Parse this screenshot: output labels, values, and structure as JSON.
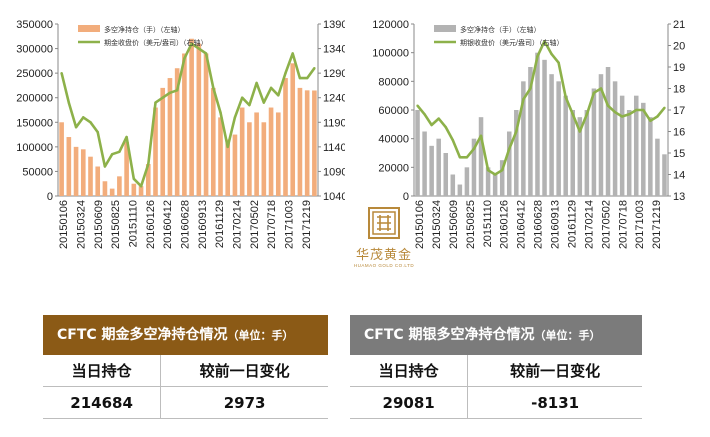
{
  "chart_data": [
    {
      "type": "bar+line",
      "legend": [
        "多空净持仓（手）（左轴）",
        "期金收盘价（美元/盎司）（右轴）"
      ],
      "legend_position": "top-left",
      "grid": false,
      "x_ticks": [
        "20150106",
        "20150324",
        "20150609",
        "20150825",
        "20151110",
        "20160126",
        "20160412",
        "20160628",
        "20160913",
        "20161129",
        "20170214",
        "20170502",
        "20170718",
        "20171003",
        "20171219"
      ],
      "y_left": {
        "min": 0,
        "max": 350000,
        "ticks": [
          "0",
          "50000",
          "100000",
          "150000",
          "200000",
          "250000",
          "300000",
          "350000"
        ]
      },
      "y_right": {
        "min": 1040,
        "max": 1390,
        "ticks": [
          "1040",
          "1090",
          "1140",
          "1190",
          "1240",
          "1290",
          "1340",
          "1390"
        ]
      },
      "colors": {
        "bars": "#f2ad7c",
        "line": "#8db14a"
      },
      "series": [
        {
          "name": "多空净持仓（手）（左轴）",
          "axis": "left",
          "kind": "bar",
          "x": [
            "2015-01",
            "2015-02",
            "2015-03",
            "2015-04",
            "2015-05",
            "2015-06",
            "2015-07",
            "2015-08",
            "2015-09",
            "2015-10",
            "2015-11",
            "2015-12",
            "2016-01",
            "2016-02",
            "2016-03",
            "2016-04",
            "2016-05",
            "2016-06",
            "2016-07",
            "2016-08",
            "2016-09",
            "2016-10",
            "2016-11",
            "2016-12",
            "2017-01",
            "2017-02",
            "2017-03",
            "2017-04",
            "2017-05",
            "2017-06",
            "2017-07",
            "2017-08",
            "2017-09",
            "2017-10",
            "2017-11",
            "2017-12"
          ],
          "values": [
            150000,
            120000,
            100000,
            95000,
            80000,
            60000,
            30000,
            15000,
            40000,
            110000,
            25000,
            20000,
            65000,
            180000,
            220000,
            240000,
            260000,
            290000,
            320000,
            310000,
            290000,
            220000,
            160000,
            115000,
            125000,
            180000,
            150000,
            170000,
            150000,
            180000,
            170000,
            240000,
            270000,
            220000,
            215000,
            214684
          ]
        },
        {
          "name": "期金收盘价（美元/盎司）（右轴）",
          "axis": "right",
          "kind": "line",
          "x": [
            "2015-01",
            "2015-02",
            "2015-03",
            "2015-04",
            "2015-05",
            "2015-06",
            "2015-07",
            "2015-08",
            "2015-09",
            "2015-10",
            "2015-11",
            "2015-12",
            "2016-01",
            "2016-02",
            "2016-03",
            "2016-04",
            "2016-05",
            "2016-06",
            "2016-07",
            "2016-08",
            "2016-09",
            "2016-10",
            "2016-11",
            "2016-12",
            "2017-01",
            "2017-02",
            "2017-03",
            "2017-04",
            "2017-05",
            "2017-06",
            "2017-07",
            "2017-08",
            "2017-09",
            "2017-10",
            "2017-11",
            "2017-12"
          ],
          "values": [
            1290,
            1230,
            1180,
            1200,
            1190,
            1170,
            1100,
            1125,
            1130,
            1160,
            1075,
            1060,
            1105,
            1230,
            1240,
            1250,
            1255,
            1320,
            1350,
            1340,
            1330,
            1260,
            1210,
            1140,
            1200,
            1240,
            1225,
            1270,
            1230,
            1260,
            1245,
            1290,
            1330,
            1280,
            1280,
            1300
          ]
        }
      ]
    },
    {
      "type": "bar+line",
      "legend": [
        "多空净持仓（手）（左轴）",
        "期银收盘价（美元/盎司）（右轴）"
      ],
      "legend_position": "top-left",
      "grid": false,
      "x_ticks": [
        "20150106",
        "20150324",
        "20150609",
        "20150825",
        "20151110",
        "20160126",
        "20160412",
        "20160628",
        "20160913",
        "20161129",
        "20170214",
        "20170502",
        "20170718",
        "20171003",
        "20171219"
      ],
      "y_left": {
        "min": 0,
        "max": 120000,
        "ticks": [
          "0",
          "20000",
          "40000",
          "60000",
          "80000",
          "100000",
          "120000"
        ]
      },
      "y_right": {
        "min": 13,
        "max": 21,
        "ticks": [
          "13",
          "14",
          "15",
          "16",
          "17",
          "18",
          "19",
          "20",
          "21"
        ]
      },
      "colors": {
        "bars": "#b3b3b3",
        "line": "#8db14a"
      },
      "series": [
        {
          "name": "多空净持仓（手）（左轴）",
          "axis": "left",
          "kind": "bar",
          "x": [
            "2015-01",
            "2015-02",
            "2015-03",
            "2015-04",
            "2015-05",
            "2015-06",
            "2015-07",
            "2015-08",
            "2015-09",
            "2015-10",
            "2015-11",
            "2015-12",
            "2016-01",
            "2016-02",
            "2016-03",
            "2016-04",
            "2016-05",
            "2016-06",
            "2016-07",
            "2016-08",
            "2016-09",
            "2016-10",
            "2016-11",
            "2016-12",
            "2017-01",
            "2017-02",
            "2017-03",
            "2017-04",
            "2017-05",
            "2017-06",
            "2017-07",
            "2017-08",
            "2017-09",
            "2017-10",
            "2017-11",
            "2017-12"
          ],
          "values": [
            60000,
            45000,
            35000,
            40000,
            30000,
            15000,
            8000,
            20000,
            40000,
            55000,
            20000,
            15000,
            25000,
            45000,
            60000,
            80000,
            90000,
            100000,
            95000,
            85000,
            80000,
            70000,
            60000,
            55000,
            60000,
            75000,
            85000,
            90000,
            80000,
            70000,
            60000,
            70000,
            65000,
            55000,
            40000,
            29081
          ]
        },
        {
          "name": "期银收盘价（美元/盎司）（右轴）",
          "axis": "right",
          "kind": "line",
          "x": [
            "2015-01",
            "2015-02",
            "2015-03",
            "2015-04",
            "2015-05",
            "2015-06",
            "2015-07",
            "2015-08",
            "2015-09",
            "2015-10",
            "2015-11",
            "2015-12",
            "2016-01",
            "2016-02",
            "2016-03",
            "2016-04",
            "2016-05",
            "2016-06",
            "2016-07",
            "2016-08",
            "2016-09",
            "2016-10",
            "2016-11",
            "2016-12",
            "2017-01",
            "2017-02",
            "2017-03",
            "2017-04",
            "2017-05",
            "2017-06",
            "2017-07",
            "2017-08",
            "2017-09",
            "2017-10",
            "2017-11",
            "2017-12"
          ],
          "values": [
            17.2,
            16.8,
            16.3,
            16.6,
            16.2,
            15.6,
            14.8,
            14.8,
            15.2,
            15.8,
            14.2,
            14.0,
            14.2,
            15.2,
            16.0,
            17.5,
            18.0,
            19.5,
            20.2,
            19.6,
            19.2,
            17.6,
            16.8,
            16.0,
            16.8,
            17.8,
            18.0,
            17.2,
            16.9,
            16.7,
            16.8,
            17.0,
            17.0,
            16.5,
            16.7,
            17.1
          ]
        }
      ]
    }
  ],
  "brand": {
    "name": "华茂黄金",
    "sub": "HUAMAO GOLD CO.LTD",
    "seal_color": "#b8893a"
  },
  "gold_panel": {
    "title": "CFTC 期金多空净持仓情况",
    "unit": "（单位：手）",
    "headers": [
      "当日持仓",
      "较前一日变化"
    ],
    "values": [
      "214684",
      "2973"
    ],
    "header_color": "#8b5a16"
  },
  "silver_panel": {
    "title": "CFTC 期银多空净持仓情况",
    "unit": "（单位：手）",
    "headers": [
      "当日持仓",
      "较前一日变化"
    ],
    "values": [
      "29081",
      "-8131"
    ],
    "header_color": "#7b7b7b"
  }
}
